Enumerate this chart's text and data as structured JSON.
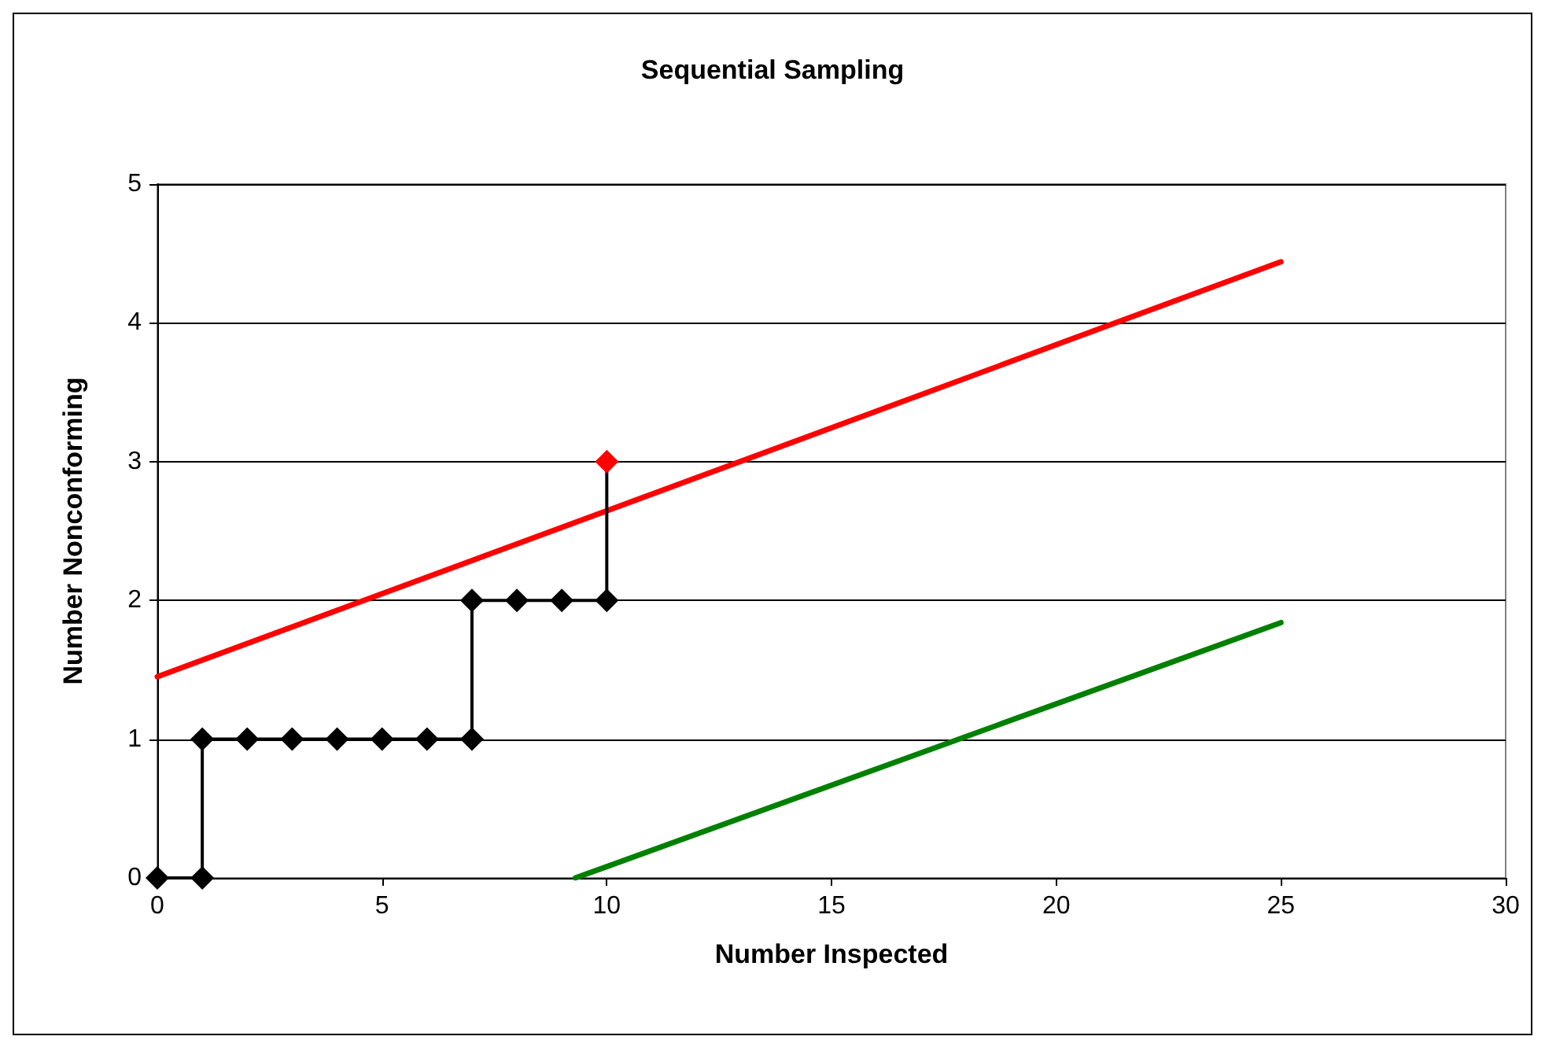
{
  "chart_data": {
    "type": "line",
    "title": "Sequential Sampling",
    "xlabel": "Number Inspected",
    "ylabel": "Number Nonconforming",
    "xlim": [
      0,
      30
    ],
    "xticks": [
      0,
      5,
      10,
      15,
      20,
      25,
      30
    ],
    "ylim": [
      0,
      5
    ],
    "yticks": [
      0,
      1,
      2,
      3,
      4,
      5
    ],
    "grid": "y",
    "series": [
      {
        "color": "#ff0000",
        "x": [
          0,
          25
        ],
        "values": [
          1.45,
          4.44
        ],
        "marker": "none"
      },
      {
        "color": "#008000",
        "x": [
          9.3,
          25
        ],
        "values": [
          0,
          1.84
        ],
        "marker": "none"
      },
      {
        "color": "#000000",
        "x": [
          0,
          1,
          1,
          2,
          3,
          4,
          5,
          6,
          7,
          7,
          8,
          9,
          10,
          10
        ],
        "values": [
          0,
          0,
          1,
          1,
          1,
          1,
          1,
          1,
          1,
          2,
          2,
          2,
          2,
          3
        ],
        "marker": "diamond",
        "colors": [
          "#000000",
          "#000000",
          "#000000",
          "#000000",
          "#000000",
          "#000000",
          "#000000",
          "#000000",
          "#000000",
          "#000000",
          "#000000",
          "#000000",
          "#000000",
          "#ff0000"
        ]
      }
    ]
  }
}
